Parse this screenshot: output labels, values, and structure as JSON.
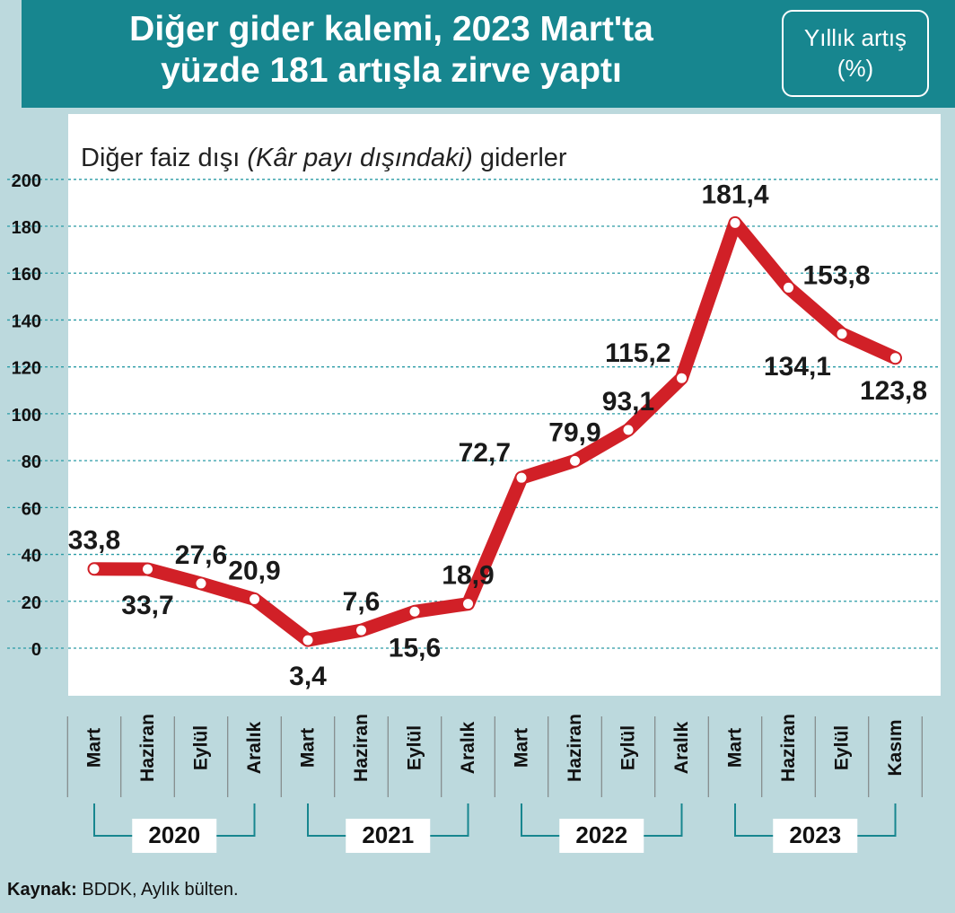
{
  "header": {
    "title_line1": "Diğer gider kalemi, 2023 Mart'ta",
    "title_line2": "yüzde 181 artışla zirve yaptı",
    "unit_line1": "Yıllık artış",
    "unit_line2": "(%)"
  },
  "source": {
    "label": "Kaynak:",
    "text": "BDDK, Aylık bülten."
  },
  "colors": {
    "header_bg": "#17868f",
    "page_bg": "#bcd9dd",
    "line": "#d12027",
    "grid": "#2a9ba5"
  },
  "chart_data": {
    "type": "line",
    "subtitle_plain1": "Diğer faiz dışı ",
    "subtitle_italic": "(Kâr payı dışındaki)",
    "subtitle_plain2": " giderler",
    "yticks": [
      "200",
      "180",
      "160",
      "140",
      "120",
      "100",
      "80",
      "60",
      "40",
      "20",
      "0"
    ],
    "ylim": [
      0,
      200
    ],
    "grid": true,
    "categories": [
      "Mart",
      "Haziran",
      "Eylül",
      "Aralık",
      "Mart",
      "Haziran",
      "Eylül",
      "Aralık",
      "Mart",
      "Haziran",
      "Eylül",
      "Aralık",
      "Mart",
      "Haziran",
      "Eylül",
      "Kasım"
    ],
    "years": [
      "2020",
      "2021",
      "2022",
      "2023"
    ],
    "values": [
      33.8,
      33.7,
      27.6,
      20.9,
      3.4,
      7.6,
      15.6,
      18.9,
      72.7,
      79.9,
      93.1,
      115.2,
      181.4,
      153.8,
      134.1,
      123.8
    ],
    "labels": [
      "33,8",
      "33,7",
      "27,6",
      "20,9",
      "3,4",
      "7,6",
      "15,6",
      "18,9",
      "72,7",
      "79,9",
      "93,1",
      "115,2",
      "181,4",
      "153,8",
      "134,1",
      "123,8"
    ]
  }
}
